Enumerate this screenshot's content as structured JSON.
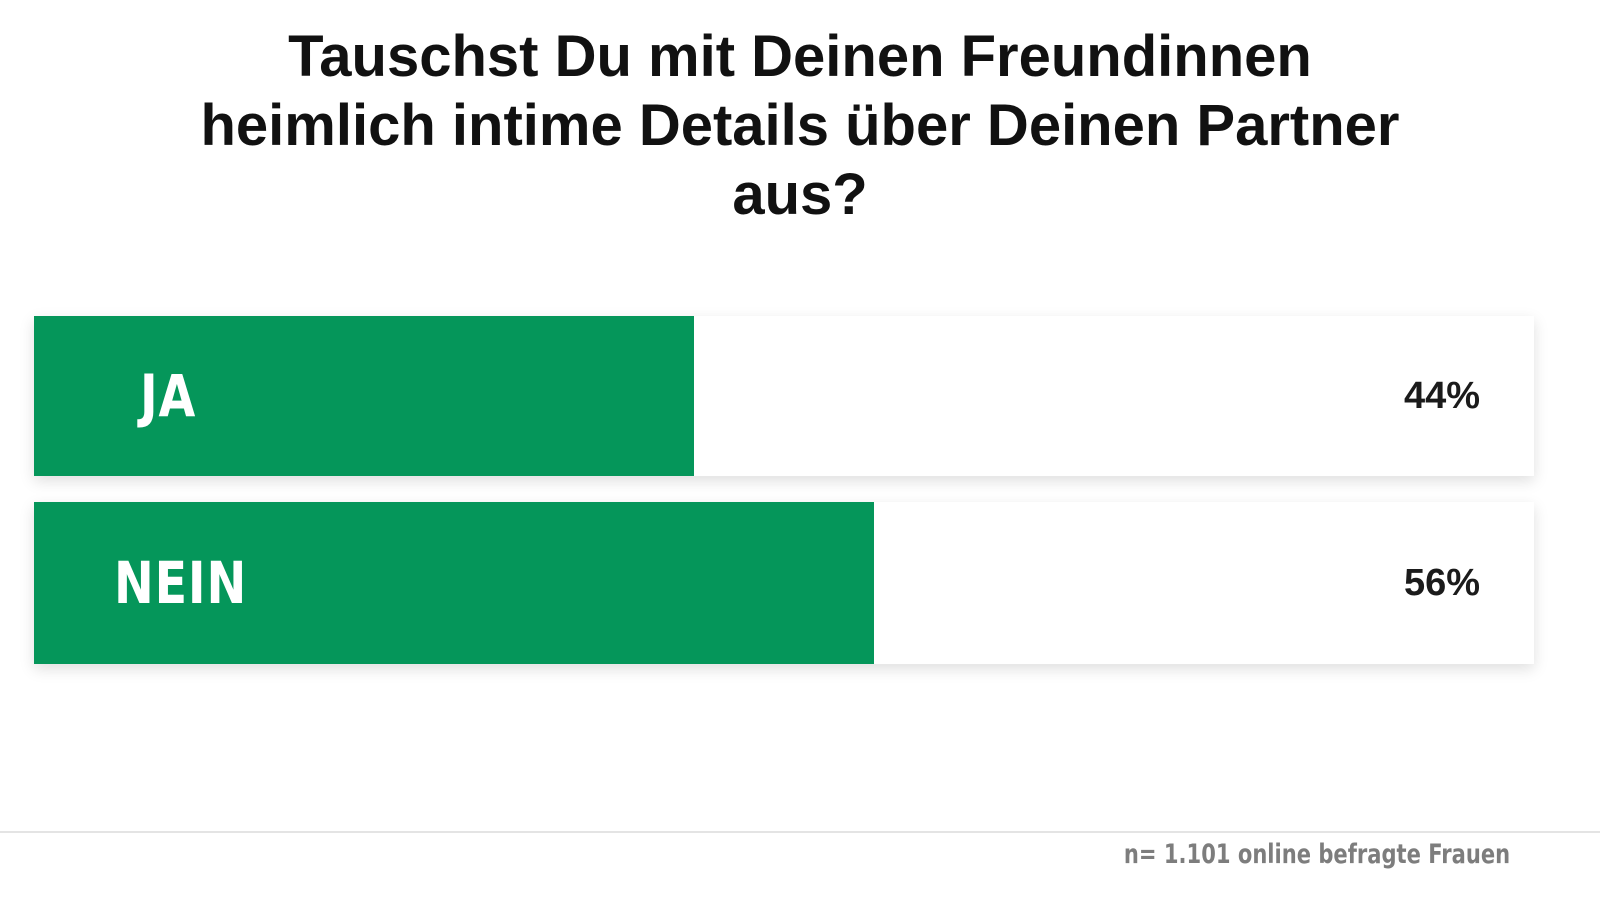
{
  "chart_data": {
    "type": "bar",
    "title": "Tauschst Du mit Deinen Freundinnen heimlich intime Details über Deinen Partner aus?",
    "categories": [
      "JA",
      "NEIN"
    ],
    "values": [
      44,
      56
    ],
    "value_labels": [
      "44%",
      "56%"
    ],
    "ylim": [
      0,
      100
    ],
    "orientation": "horizontal",
    "bar_color": "#05965a",
    "footnote": "n= 1.101 online befragte Frauen"
  },
  "header": {
    "title_lines": [
      "Tauschst Du mit Deinen Freundinnen",
      "heimlich intime Details über Deinen Partner",
      "aus?"
    ]
  },
  "colors": {
    "accent": "#05965a",
    "bar_track": "#ffffff",
    "value_text": "#1b1b1b",
    "footnote_text": "#7d7d7d"
  }
}
